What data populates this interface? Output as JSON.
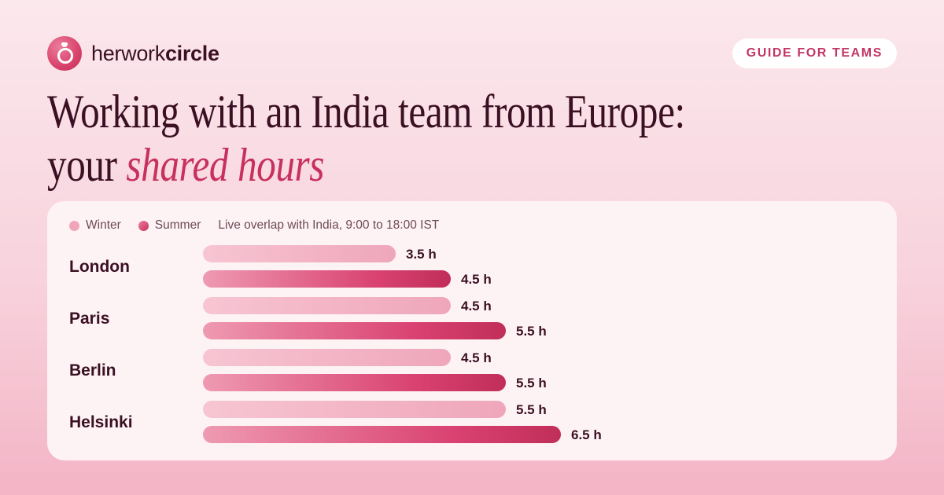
{
  "brand": {
    "name_light": "herwork",
    "name_bold": "circle"
  },
  "badge": "GUIDE FOR TEAMS",
  "title": {
    "line1": "Working with an India team from Europe:",
    "line2_plain": "your ",
    "line2_emphasis": "shared hours"
  },
  "colors": {
    "winter": "#efa6bb",
    "summer_start": "#ec7d9c",
    "summer_end": "#c12e59",
    "accent": "#c8305f"
  },
  "chart_data": {
    "type": "bar",
    "orientation": "horizontal",
    "categories": [
      "London",
      "Paris",
      "Berlin",
      "Helsinki"
    ],
    "series": [
      {
        "name": "Winter",
        "values": [
          3.5,
          4.5,
          4.5,
          5.5
        ],
        "labels": [
          "3.5 h",
          "4.5 h",
          "4.5 h",
          "5.5 h"
        ]
      },
      {
        "name": "Summer",
        "values": [
          4.5,
          5.5,
          5.5,
          6.5
        ],
        "labels": [
          "4.5 h",
          "5.5 h",
          "5.5 h",
          "6.5 h"
        ]
      }
    ],
    "annotation": "Live overlap with India, 9:00 to 18:00 IST",
    "legend": "top-left",
    "grid": false,
    "xlim": [
      0,
      6.5
    ]
  }
}
